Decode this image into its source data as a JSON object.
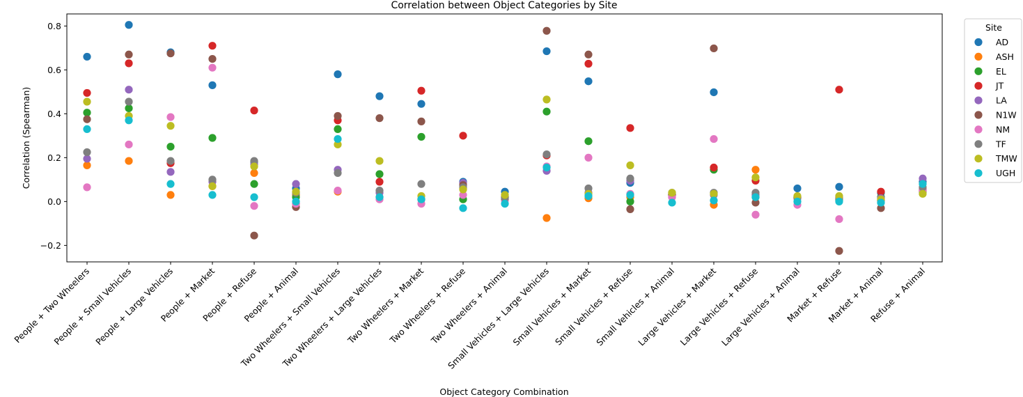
{
  "chart_data": {
    "type": "scatter",
    "title": "Correlation between Object Categories by Site",
    "xlabel": "Object Category Combination",
    "ylabel": "Correlation (Spearman)",
    "ylim": [
      -0.275,
      0.855
    ],
    "yticks": [
      -0.2,
      0.0,
      0.2,
      0.4,
      0.6,
      0.8
    ],
    "ytick_labels": [
      "−0.2",
      "0.0",
      "0.2",
      "0.4",
      "0.6",
      "0.8"
    ],
    "grid": false,
    "legend_title": "Site",
    "legend_position": "outside-right-top",
    "categories": [
      "People + Two Wheelers",
      "People + Small Vehicles",
      "People + Large Vehicles",
      "People + Market",
      "People + Refuse",
      "People + Animal",
      "Two Wheelers + Small Vehicles",
      "Two Wheelers + Large Vehicles",
      "Two Wheelers + Market",
      "Two Wheelers + Refuse",
      "Two Wheelers + Animal",
      "Small Vehicles + Large Vehicles",
      "Small Vehicles + Market",
      "Small Vehicles + Refuse",
      "Small Vehicles + Animal",
      "Large Vehicles + Market",
      "Large Vehicles + Refuse",
      "Large Vehicles + Animal",
      "Market + Refuse",
      "Market + Animal",
      "Refuse + Animal"
    ],
    "series": [
      {
        "name": "AD",
        "color": "#1f77b4",
        "values": [
          0.66,
          0.805,
          0.68,
          0.53,
          0.18,
          0.06,
          0.58,
          0.48,
          0.445,
          0.09,
          0.045,
          0.685,
          0.548,
          0.085,
          0.035,
          0.498,
          0.03,
          0.06,
          0.067,
          0.04,
          0.09
        ]
      },
      {
        "name": "ASH",
        "color": "#ff7f0e",
        "values": [
          0.165,
          0.185,
          0.03,
          0.07,
          0.13,
          0.03,
          0.045,
          0.02,
          0.01,
          0.06,
          0.02,
          -0.075,
          0.015,
          0.02,
          0.03,
          -0.015,
          0.145,
          0.015,
          0.01,
          0.005,
          0.05
        ]
      },
      {
        "name": "EL",
        "color": "#2ca02c",
        "values": [
          0.405,
          0.425,
          0.25,
          0.29,
          0.08,
          0.02,
          0.33,
          0.125,
          0.295,
          0.01,
          0.01,
          0.41,
          0.275,
          0.0,
          0.03,
          0.145,
          0.02,
          0.02,
          0.005,
          0.02,
          0.045
        ]
      },
      {
        "name": "JT",
        "color": "#d62728",
        "values": [
          0.495,
          0.63,
          0.175,
          0.71,
          0.415,
          -0.01,
          0.37,
          0.09,
          0.505,
          0.3,
          0.01,
          0.21,
          0.628,
          0.335,
          0.03,
          0.155,
          0.095,
          0.02,
          0.51,
          0.045,
          0.055
        ]
      },
      {
        "name": "LA",
        "color": "#9467bd",
        "values": [
          0.195,
          0.51,
          0.135,
          0.09,
          0.17,
          0.08,
          0.145,
          0.04,
          0.01,
          0.085,
          0.02,
          0.14,
          0.04,
          0.095,
          0.02,
          0.03,
          0.03,
          0.015,
          0.02,
          0.015,
          0.105
        ]
      },
      {
        "name": "N1W",
        "color": "#8c564b",
        "values": [
          0.375,
          0.67,
          0.675,
          0.65,
          -0.155,
          -0.025,
          0.39,
          0.38,
          0.365,
          0.075,
          0.02,
          0.778,
          0.67,
          -0.035,
          0.035,
          0.698,
          -0.005,
          0.02,
          -0.225,
          -0.03,
          0.05
        ]
      },
      {
        "name": "NM",
        "color": "#e377c2",
        "values": [
          0.065,
          0.26,
          0.385,
          0.61,
          -0.02,
          -0.01,
          0.05,
          0.01,
          -0.01,
          0.03,
          0.005,
          0.16,
          0.2,
          0.035,
          0.02,
          0.285,
          -0.06,
          -0.015,
          -0.08,
          0.005,
          0.05
        ]
      },
      {
        "name": "TF",
        "color": "#7f7f7f",
        "values": [
          0.225,
          0.455,
          0.185,
          0.1,
          0.185,
          0.04,
          0.13,
          0.05,
          0.08,
          0.065,
          0.015,
          0.215,
          0.06,
          0.105,
          0.04,
          0.04,
          0.04,
          0.02,
          0.015,
          0.005,
          0.065
        ]
      },
      {
        "name": "TMW",
        "color": "#bcbd22",
        "values": [
          0.455,
          0.39,
          0.345,
          0.07,
          0.16,
          0.045,
          0.26,
          0.185,
          0.025,
          0.055,
          0.03,
          0.465,
          0.035,
          0.165,
          0.04,
          0.035,
          0.11,
          0.025,
          0.025,
          0.01,
          0.035
        ]
      },
      {
        "name": "UGH",
        "color": "#17becf",
        "values": [
          0.33,
          0.37,
          0.08,
          0.03,
          0.02,
          0.0,
          0.285,
          0.02,
          0.01,
          -0.03,
          -0.01,
          0.155,
          0.025,
          0.03,
          -0.005,
          0.005,
          0.02,
          0.0,
          0.0,
          -0.005,
          0.08
        ]
      }
    ]
  }
}
